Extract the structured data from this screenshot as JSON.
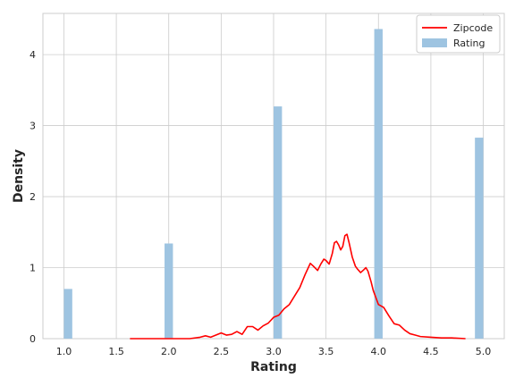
{
  "chart_data": {
    "type": "bar",
    "title": "",
    "xlabel": "Rating",
    "ylabel": "Density",
    "xlim": [
      0.8,
      5.2
    ],
    "ylim": [
      0,
      4.58
    ],
    "grid": true,
    "legend_position": "top-right",
    "x_ticks": [
      1.0,
      1.5,
      2.0,
      2.5,
      3.0,
      3.5,
      4.0,
      4.5,
      5.0
    ],
    "x_tick_labels": [
      "1.0",
      "1.5",
      "2.0",
      "2.5",
      "3.0",
      "3.5",
      "4.0",
      "4.5",
      "5.0"
    ],
    "y_ticks": [
      0,
      1,
      2,
      3,
      4
    ],
    "y_tick_labels": [
      "0",
      "1",
      "2",
      "3",
      "4"
    ],
    "legend": [
      {
        "label": "Zipcode",
        "kind": "line",
        "color": "#ff0000"
      },
      {
        "label": "Rating",
        "kind": "patch",
        "color": "#9ec4e1"
      }
    ],
    "bars": {
      "name": "Rating",
      "color": "#9ec4e1",
      "bin_width": 0.08,
      "centers": [
        1.04,
        2.0,
        3.04,
        4.0,
        4.96
      ],
      "values": [
        0.7,
        1.34,
        3.27,
        4.36,
        2.83
      ]
    },
    "kde": {
      "name": "Zipcode",
      "color": "#ff0000",
      "x": [
        1.63,
        2.2,
        2.3,
        2.35,
        2.4,
        2.45,
        2.5,
        2.55,
        2.6,
        2.65,
        2.7,
        2.75,
        2.8,
        2.85,
        2.9,
        2.95,
        3.0,
        3.05,
        3.1,
        3.15,
        3.2,
        3.25,
        3.3,
        3.35,
        3.38,
        3.42,
        3.45,
        3.48,
        3.5,
        3.53,
        3.56,
        3.58,
        3.6,
        3.62,
        3.64,
        3.66,
        3.68,
        3.7,
        3.72,
        3.75,
        3.78,
        3.8,
        3.83,
        3.86,
        3.88,
        3.9,
        3.93,
        3.95,
        4.0,
        4.05,
        4.1,
        4.15,
        4.2,
        4.25,
        4.3,
        4.35,
        4.4,
        4.5,
        4.6,
        4.7,
        4.83
      ],
      "y": [
        0.0,
        0.0,
        0.02,
        0.04,
        0.02,
        0.05,
        0.08,
        0.05,
        0.06,
        0.1,
        0.06,
        0.17,
        0.17,
        0.12,
        0.18,
        0.22,
        0.3,
        0.33,
        0.42,
        0.48,
        0.6,
        0.72,
        0.9,
        1.06,
        1.02,
        0.96,
        1.05,
        1.12,
        1.1,
        1.05,
        1.2,
        1.35,
        1.37,
        1.32,
        1.25,
        1.3,
        1.45,
        1.47,
        1.35,
        1.15,
        1.02,
        0.98,
        0.93,
        0.97,
        1.0,
        0.95,
        0.8,
        0.68,
        0.48,
        0.44,
        0.32,
        0.21,
        0.19,
        0.12,
        0.07,
        0.05,
        0.03,
        0.02,
        0.01,
        0.01,
        0.0
      ]
    }
  }
}
